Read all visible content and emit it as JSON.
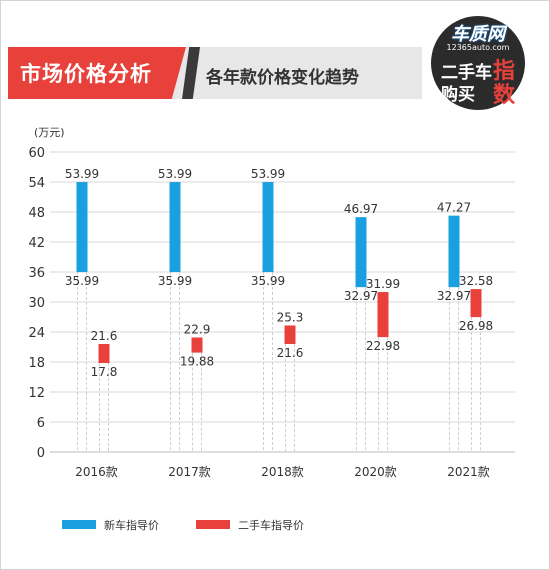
{
  "header": {
    "main_title": "市场价格分析",
    "sub_title": "各年款价格变化趋势"
  },
  "logo": {
    "brand": "车质网",
    "url": "12365auto.com",
    "line1_a": "二手车",
    "line1_b": "指",
    "line2_a": "购买",
    "line2_b": "数"
  },
  "colors": {
    "new_car": "#1aa0e0",
    "used_car": "#e8413c",
    "header_red": "#e8413c"
  },
  "chart_data": {
    "type": "bar",
    "subtype": "floating-range",
    "unit_label": "(万元)",
    "categories": [
      "2016款",
      "2017款",
      "2018款",
      "2020款",
      "2021款"
    ],
    "ylim": [
      0,
      60
    ],
    "yticks": [
      0,
      6,
      12,
      18,
      24,
      30,
      36,
      42,
      48,
      54,
      60
    ],
    "grid": true,
    "legend_position": "bottom-left",
    "series": [
      {
        "name": "新车指导价",
        "color": "#1aa0e0",
        "ranges": [
          [
            35.99,
            53.99
          ],
          [
            35.99,
            53.99
          ],
          [
            35.99,
            53.99
          ],
          [
            32.97,
            46.97
          ],
          [
            32.97,
            47.27
          ]
        ],
        "high_labels": [
          "53.99",
          "53.99",
          "53.99",
          "46.97",
          "47.27"
        ],
        "low_labels": [
          "35.99",
          "35.99",
          "35.99",
          "32.97",
          "32.97"
        ]
      },
      {
        "name": "二手车指导价",
        "color": "#e8413c",
        "ranges": [
          [
            17.8,
            21.6
          ],
          [
            19.88,
            22.9
          ],
          [
            21.6,
            25.3
          ],
          [
            22.98,
            31.99
          ],
          [
            26.98,
            32.58
          ]
        ],
        "high_labels": [
          "21.6",
          "22.9",
          "25.3",
          "31.99",
          "32.58"
        ],
        "low_labels": [
          "17.8",
          "19.88",
          "21.6",
          "22.98",
          "26.98"
        ]
      }
    ]
  }
}
